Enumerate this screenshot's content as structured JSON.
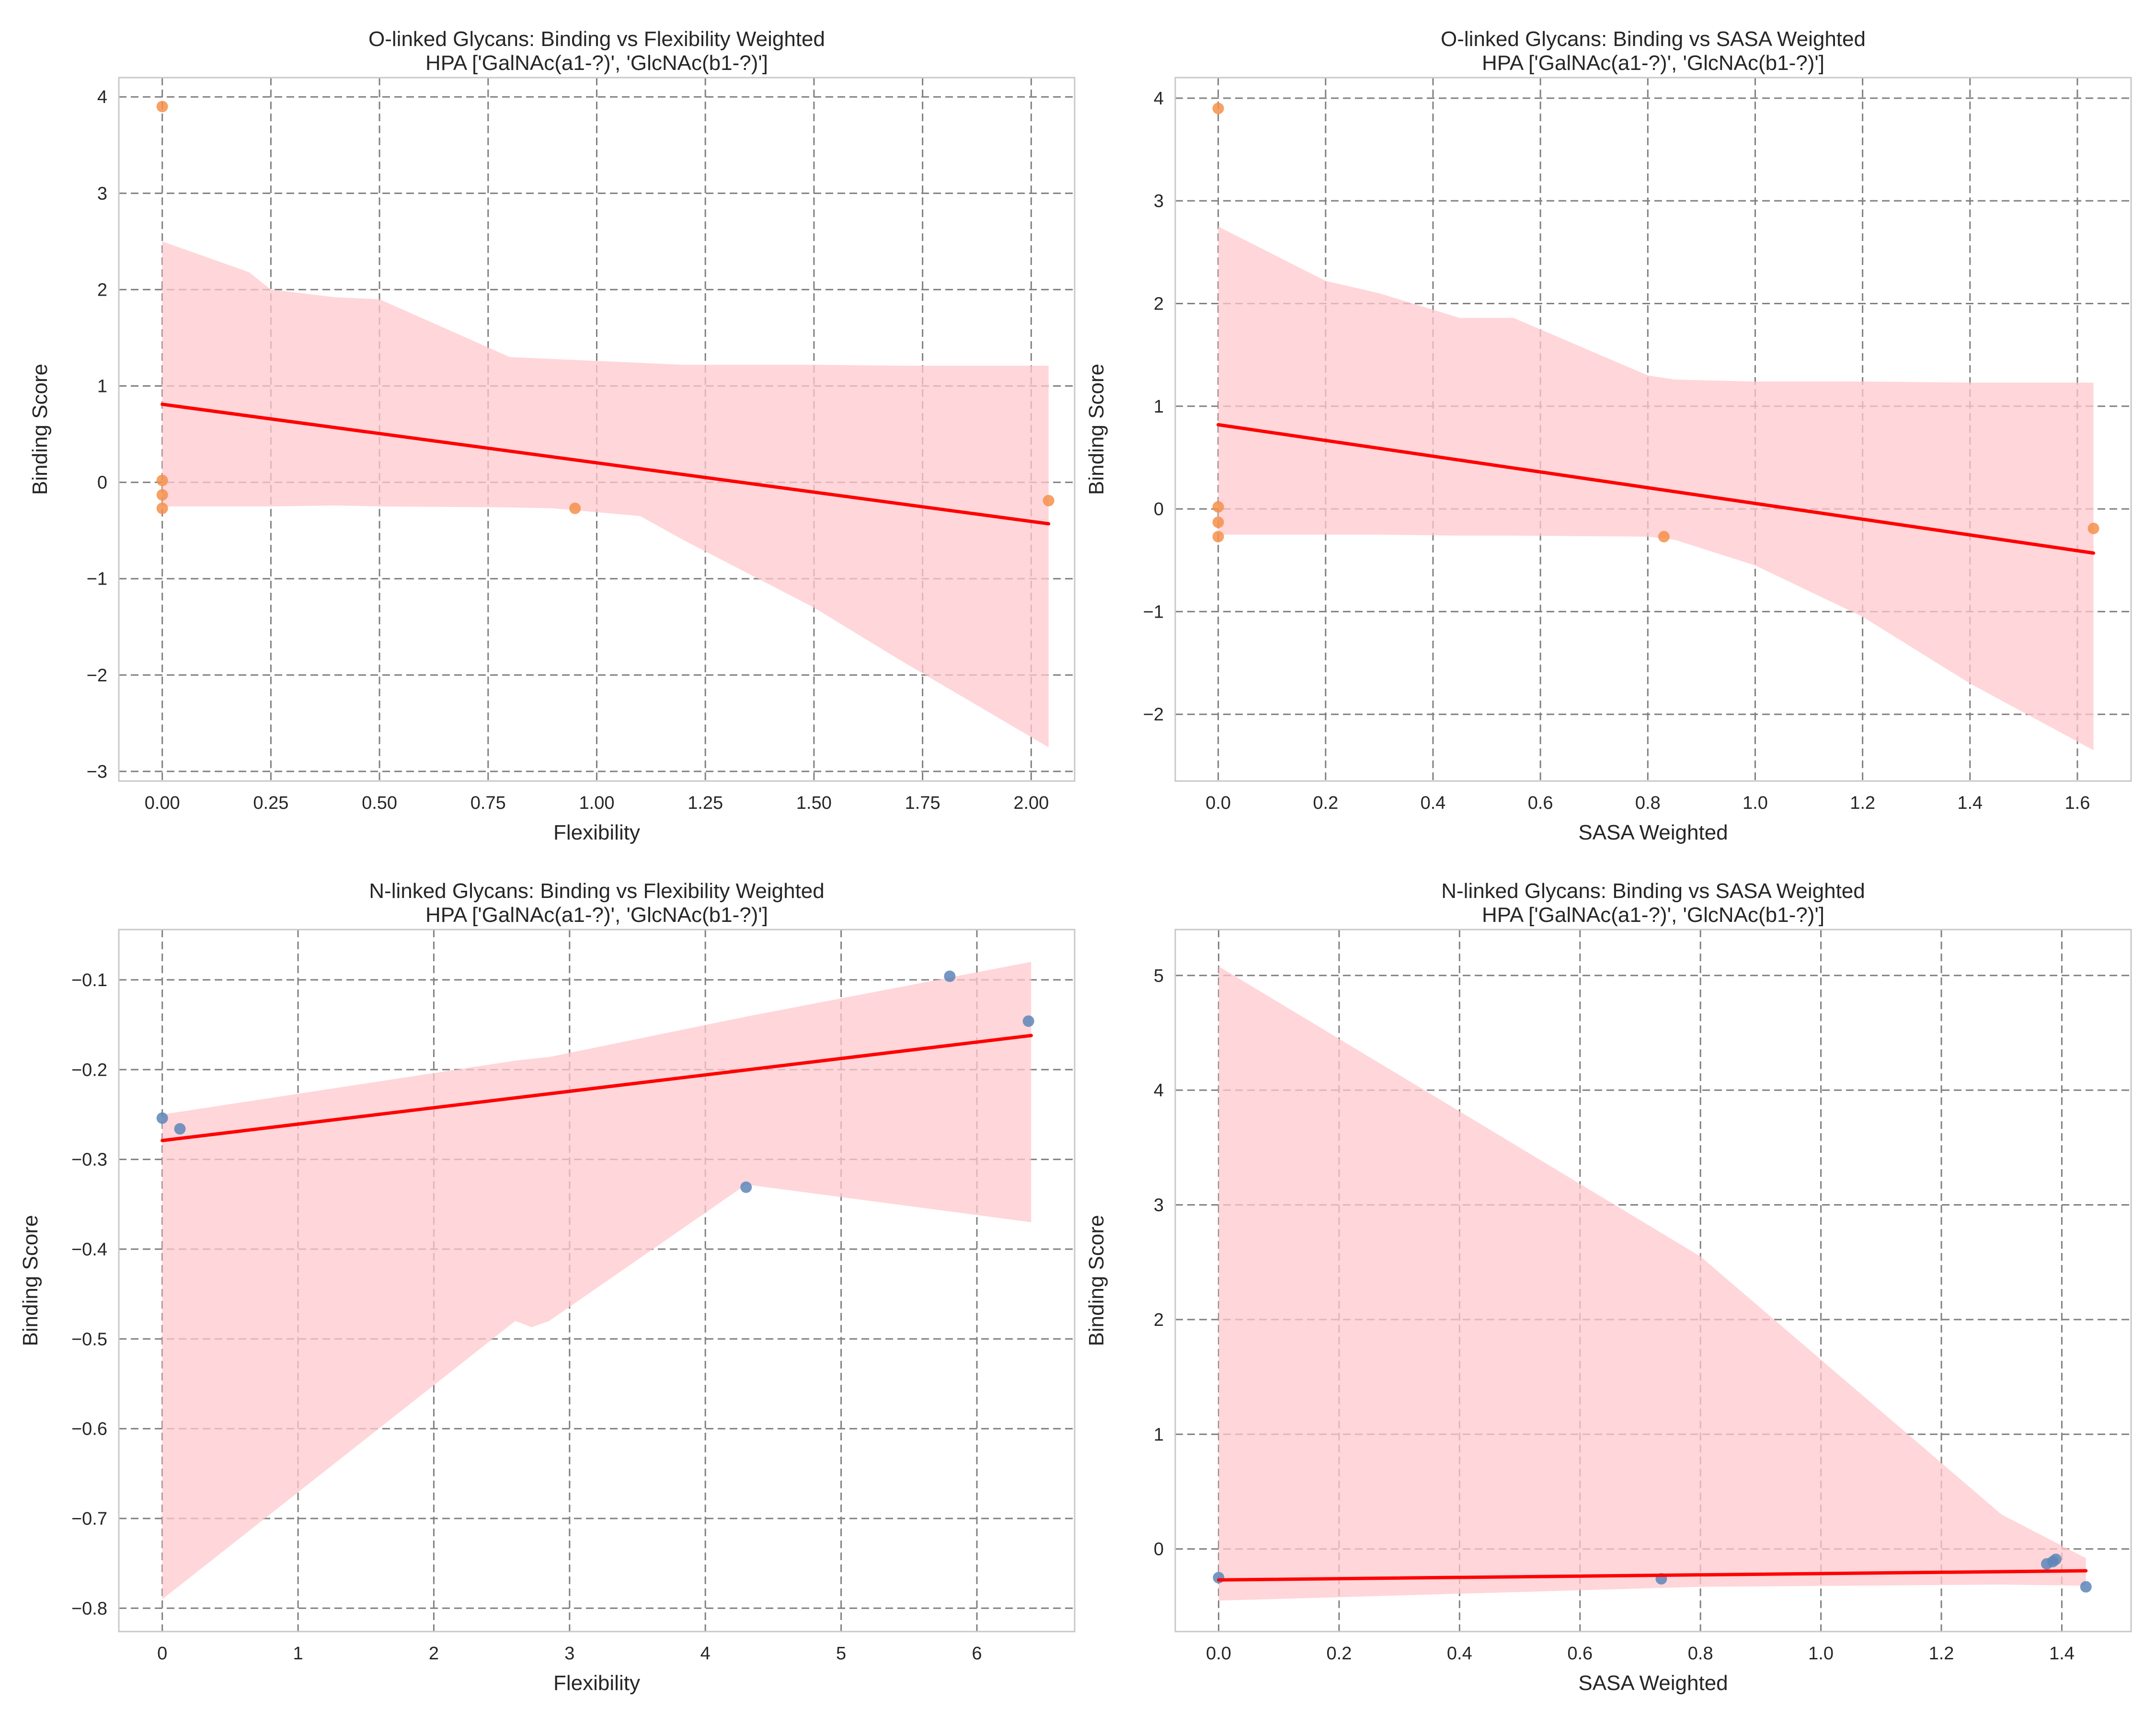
{
  "figure": {
    "background": "#ffffff"
  },
  "colors": {
    "fit_line": "#ff0000",
    "ci_band": "#ffc8cc",
    "grid": "#808080",
    "spine": "#c8c8c8",
    "o_points": "#f5904a",
    "n_points": "#5d86b9"
  },
  "chart_data": [
    {
      "id": "o-flex",
      "type": "scatter",
      "title": "O-linked Glycans: Binding vs Flexibility Weighted",
      "subtitle": "HPA ['GalNAc(a1-?)', 'GlcNAc(b1-?)']",
      "xlabel": "Flexibility",
      "ylabel": "Binding Score",
      "xlim": [
        -0.1,
        2.1
      ],
      "ylim": [
        -3.1,
        4.2
      ],
      "xticks": [
        0.0,
        0.25,
        0.5,
        0.75,
        1.0,
        1.25,
        1.5,
        1.75,
        2.0
      ],
      "xtick_labels": [
        "0.00",
        "0.25",
        "0.50",
        "0.75",
        "1.00",
        "1.25",
        "1.50",
        "1.75",
        "2.00"
      ],
      "yticks": [
        -3,
        -2,
        -1,
        0,
        1,
        2,
        3,
        4
      ],
      "ytick_labels": [
        "−3",
        "−2",
        "−1",
        "0",
        "1",
        "2",
        "3",
        "4"
      ],
      "grid": true,
      "point_color": "#f5904a",
      "points": {
        "x": [
          0.0,
          0.0,
          0.0,
          0.0,
          0.95,
          2.04
        ],
        "y": [
          3.9,
          0.02,
          -0.13,
          -0.27,
          -0.27,
          -0.19
        ]
      },
      "fit": {
        "x": [
          0.0,
          2.04
        ],
        "y": [
          0.81,
          -0.43
        ]
      },
      "ci": {
        "x": [
          0.0,
          0.2,
          0.25,
          0.4,
          0.5,
          0.8,
          0.9,
          1.1,
          1.2,
          1.5,
          1.7,
          2.04
        ],
        "lower": [
          -0.25,
          -0.25,
          -0.25,
          -0.24,
          -0.25,
          -0.26,
          -0.27,
          -0.35,
          -0.6,
          -1.3,
          -1.85,
          -2.75
        ],
        "upper": [
          2.5,
          2.18,
          2.0,
          1.92,
          1.9,
          1.3,
          1.28,
          1.24,
          1.22,
          1.22,
          1.21,
          1.21
        ]
      }
    },
    {
      "id": "o-sasa",
      "type": "scatter",
      "title": "O-linked Glycans: Binding vs SASA Weighted",
      "subtitle": "HPA ['GalNAc(a1-?)', 'GlcNAc(b1-?)']",
      "xlabel": "SASA Weighted",
      "ylabel": "Binding Score",
      "xlim": [
        -0.08,
        1.7
      ],
      "ylim": [
        -2.65,
        4.2
      ],
      "xticks": [
        0.0,
        0.2,
        0.4,
        0.6,
        0.8,
        1.0,
        1.2,
        1.4,
        1.6
      ],
      "xtick_labels": [
        "0.0",
        "0.2",
        "0.4",
        "0.6",
        "0.8",
        "1.0",
        "1.2",
        "1.4",
        "1.6"
      ],
      "yticks": [
        -2,
        -1,
        0,
        1,
        2,
        3,
        4
      ],
      "ytick_labels": [
        "−2",
        "−1",
        "0",
        "1",
        "2",
        "3",
        "4"
      ],
      "grid": true,
      "point_color": "#f5904a",
      "points": {
        "x": [
          0.0,
          0.0,
          0.0,
          0.0,
          0.83,
          1.63
        ],
        "y": [
          3.9,
          0.02,
          -0.13,
          -0.27,
          -0.27,
          -0.19
        ]
      },
      "fit": {
        "x": [
          0.0,
          1.63
        ],
        "y": [
          0.82,
          -0.43
        ]
      },
      "ci": {
        "x": [
          0.0,
          0.2,
          0.3,
          0.45,
          0.55,
          0.8,
          0.85,
          1.0,
          1.2,
          1.4,
          1.63
        ],
        "lower": [
          -0.25,
          -0.25,
          -0.25,
          -0.26,
          -0.26,
          -0.27,
          -0.3,
          -0.55,
          -1.05,
          -1.7,
          -2.35
        ],
        "upper": [
          2.75,
          2.22,
          2.1,
          1.86,
          1.86,
          1.3,
          1.26,
          1.24,
          1.24,
          1.23,
          1.23
        ]
      }
    },
    {
      "id": "n-flex",
      "type": "scatter",
      "title": "N-linked Glycans: Binding vs Flexibility Weighted",
      "subtitle": "HPA ['GalNAc(a1-?)', 'GlcNAc(b1-?)']",
      "xlabel": "Flexibility",
      "ylabel": "Binding Score",
      "xlim": [
        -0.32,
        6.72
      ],
      "ylim": [
        -0.826,
        -0.044
      ],
      "xticks": [
        0,
        1,
        2,
        3,
        4,
        5,
        6
      ],
      "xtick_labels": [
        "0",
        "1",
        "2",
        "3",
        "4",
        "5",
        "6"
      ],
      "yticks": [
        -0.8,
        -0.7,
        -0.6,
        -0.5,
        -0.4,
        -0.3,
        -0.2,
        -0.1
      ],
      "ytick_labels": [
        "−0.8",
        "−0.7",
        "−0.6",
        "−0.5",
        "−0.4",
        "−0.3",
        "−0.2",
        "−0.1"
      ],
      "grid": true,
      "point_color": "#5d86b9",
      "points": {
        "x": [
          0.0,
          0.13,
          4.3,
          5.8,
          6.38
        ],
        "y": [
          -0.254,
          -0.266,
          -0.331,
          -0.096,
          -0.146
        ]
      },
      "fit": {
        "x": [
          0.0,
          6.4
        ],
        "y": [
          -0.279,
          -0.162
        ]
      },
      "ci": {
        "x": [
          0.0,
          2.6,
          2.72,
          2.85,
          4.3,
          6.4
        ],
        "lower": [
          -0.79,
          -0.48,
          -0.487,
          -0.48,
          -0.328,
          -0.37
        ],
        "upper": [
          -0.25,
          -0.19,
          -0.188,
          -0.186,
          -0.141,
          -0.08
        ]
      }
    },
    {
      "id": "n-sasa",
      "type": "scatter",
      "title": "N-linked Glycans: Binding vs SASA Weighted",
      "subtitle": "HPA ['GalNAc(a1-?)', 'GlcNAc(b1-?)']",
      "xlabel": "SASA Weighted",
      "ylabel": "Binding Score",
      "xlim": [
        -0.072,
        1.515
      ],
      "ylim": [
        -0.72,
        5.4
      ],
      "xticks": [
        0.0,
        0.2,
        0.4,
        0.6,
        0.8,
        1.0,
        1.2,
        1.4
      ],
      "xtick_labels": [
        "0.0",
        "0.2",
        "0.4",
        "0.6",
        "0.8",
        "1.0",
        "1.2",
        "1.4"
      ],
      "yticks": [
        0,
        1,
        2,
        3,
        4,
        5
      ],
      "ytick_labels": [
        "0",
        "1",
        "2",
        "3",
        "4",
        "5"
      ],
      "grid": true,
      "point_color": "#5d86b9",
      "points": {
        "x": [
          0.0,
          0.735,
          1.375,
          1.385,
          1.39,
          1.44
        ],
        "y": [
          -0.25,
          -0.26,
          -0.13,
          -0.11,
          -0.09,
          -0.33
        ]
      },
      "fit": {
        "x": [
          0.0,
          1.44
        ],
        "y": [
          -0.27,
          -0.19
        ]
      },
      "ci": {
        "x": [
          0.0,
          0.8,
          1.3,
          1.44
        ],
        "lower": [
          -0.45,
          -0.33,
          -0.31,
          -0.32
        ],
        "upper": [
          5.08,
          2.55,
          0.3,
          -0.08
        ]
      }
    }
  ]
}
